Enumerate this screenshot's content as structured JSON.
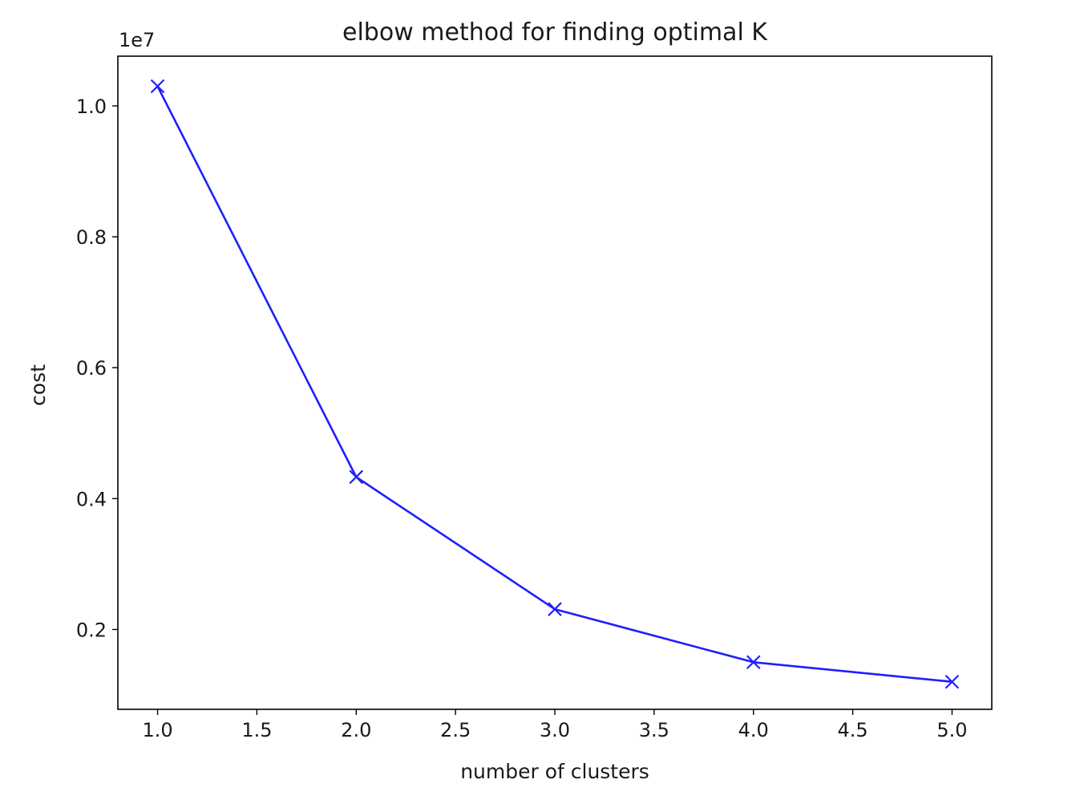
{
  "chart_data": {
    "type": "line",
    "title": "elbow method for finding optimal K",
    "xlabel": "number of clusters",
    "ylabel": "cost",
    "y_offset_label": "1e7",
    "x": [
      1,
      2,
      3,
      4,
      5
    ],
    "series": [
      {
        "values": [
          10300000,
          4330000,
          2310000,
          1500000,
          1200000
        ],
        "color": "#1f1fff",
        "marker": "x"
      }
    ],
    "xlim": [
      0.8,
      5.2
    ],
    "ylim": [
      780000,
      10760000
    ],
    "xticks": [
      1.0,
      1.5,
      2.0,
      2.5,
      3.0,
      3.5,
      4.0,
      4.5,
      5.0
    ],
    "xtick_labels": [
      "1.0",
      "1.5",
      "2.0",
      "2.5",
      "3.0",
      "3.5",
      "4.0",
      "4.5",
      "5.0"
    ],
    "yticks": [
      2000000,
      4000000,
      6000000,
      8000000,
      10000000
    ],
    "ytick_labels": [
      "0.2",
      "0.4",
      "0.6",
      "0.8",
      "1.0"
    ],
    "grid": false,
    "legend": false
  }
}
